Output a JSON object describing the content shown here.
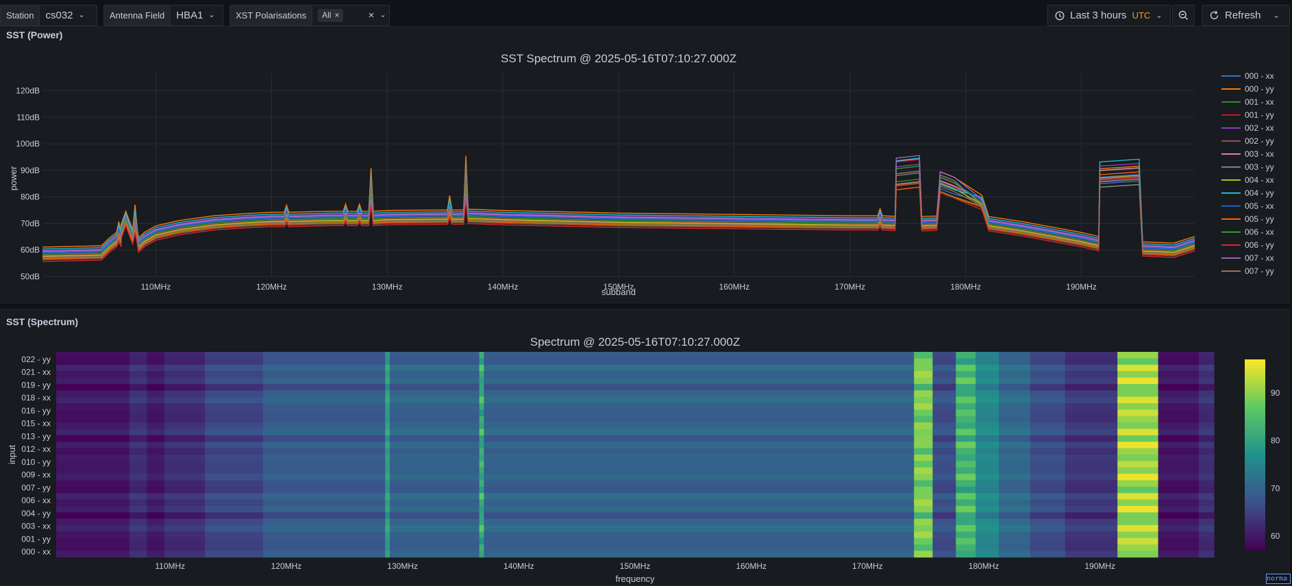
{
  "toolbar": {
    "station": {
      "label": "Station",
      "value": "cs032"
    },
    "antenna_field": {
      "label": "Antenna Field",
      "value": "HBA1"
    },
    "xst_polarisations": {
      "label": "XST Polarisations",
      "chip": "All"
    },
    "time_range": {
      "label": "Last 3 hours",
      "tz": "UTC"
    },
    "refresh_label": "Refresh",
    "icons": {
      "clock": "clock-icon",
      "zoom_out": "zoom-out-icon",
      "refresh": "refresh-icon"
    }
  },
  "panel1": {
    "title": "SST (Power)",
    "chart_data": {
      "type": "line",
      "title": "SST Spectrum @ 2025-05-16T07:10:27.000Z",
      "xlabel": "subband",
      "ylabel": "power",
      "xlim": [
        100.2,
        199.8
      ],
      "ylim": [
        50,
        124
      ],
      "x_ticks": [
        110,
        120,
        130,
        140,
        150,
        160,
        170,
        180,
        190
      ],
      "x_tick_labels": [
        "110MHz",
        "120MHz",
        "130MHz",
        "140MHz",
        "150MHz",
        "160MHz",
        "170MHz",
        "180MHz",
        "190MHz"
      ],
      "y_ticks": [
        50,
        60,
        70,
        80,
        90,
        100,
        110,
        120
      ],
      "y_tick_labels": [
        "50dB",
        "60dB",
        "70dB",
        "80dB",
        "90dB",
        "100dB",
        "110dB",
        "120dB"
      ],
      "grid": true,
      "legend_position": "right",
      "base_x": [
        100.2,
        105.3,
        106,
        106.6,
        107,
        107.4,
        108,
        108.5,
        109,
        110,
        112,
        115,
        118,
        120,
        125,
        130,
        135,
        137,
        140,
        150,
        160,
        170,
        173.9,
        174,
        176,
        176.2,
        177.5,
        177.8,
        179,
        181.4,
        182,
        185,
        190,
        191.5,
        191.6,
        195,
        195.3,
        197,
        198,
        199.8
      ],
      "base_y": [
        58.5,
        59,
        62,
        64,
        67,
        72,
        65,
        62,
        64,
        66.5,
        68.5,
        70.3,
        71.2,
        71.6,
        72,
        72.3,
        72.5,
        72.8,
        72.3,
        71.3,
        70.8,
        70.3,
        70.1,
        89,
        90,
        70,
        70.2,
        86,
        84,
        78,
        70,
        68,
        64,
        62.5,
        88,
        89,
        60.5,
        60.2,
        60,
        62.5
      ],
      "series": [
        {
          "name": "000 - xx",
          "offset": 0.3,
          "color": "#3274d9"
        },
        {
          "name": "000 - yy",
          "offset": 2.6,
          "color": "#ff780a"
        },
        {
          "name": "001 - xx",
          "offset": -1.5,
          "color": "#37872d"
        },
        {
          "name": "001 - yy",
          "offset": -0.4,
          "color": "#c4162a"
        },
        {
          "name": "002 - xx",
          "offset": 1.4,
          "color": "#8f3bb8"
        },
        {
          "name": "002 - yy",
          "offset": -2.2,
          "color": "#8c564b"
        },
        {
          "name": "003 - xx",
          "offset": 0.9,
          "color": "#e377c2"
        },
        {
          "name": "003 - yy",
          "offset": -1,
          "color": "#7f7f7f"
        },
        {
          "name": "004 - xx",
          "offset": -0.8,
          "color": "#bcbd22"
        },
        {
          "name": "004 - yy",
          "offset": 1.9,
          "color": "#17becf"
        },
        {
          "name": "005 - xx",
          "offset": 0.6,
          "color": "#1f60c4"
        },
        {
          "name": "005 - yy",
          "offset": -1.8,
          "color": "#fa6400"
        },
        {
          "name": "006 - xx",
          "offset": -0.2,
          "color": "#2ca02c"
        },
        {
          "name": "006 - yy",
          "offset": -2.8,
          "color": "#d62728"
        },
        {
          "name": "007 - xx",
          "offset": 1.1,
          "color": "#9467bd"
        },
        {
          "name": "007 - yy",
          "offset": -1.2,
          "color": "#a36f5c"
        }
      ]
    }
  },
  "panel2": {
    "title": "SST (Spectrum)",
    "chart_data": {
      "type": "heatmap",
      "title": "Spectrum @ 2025-05-16T07:10:27.000Z",
      "xlabel": "frequency",
      "ylabel": "input",
      "xlim": [
        100.2,
        199.8
      ],
      "x_ticks": [
        110,
        120,
        130,
        140,
        150,
        160,
        170,
        180,
        190
      ],
      "x_tick_labels": [
        "110MHz",
        "120MHz",
        "130MHz",
        "140MHz",
        "150MHz",
        "160MHz",
        "170MHz",
        "180MHz",
        "190MHz"
      ],
      "y_tick_labels": [
        "022 - yy",
        "021 - xx",
        "019 - yy",
        "018 - xx",
        "016 - yy",
        "015 - xx",
        "013 - yy",
        "012 - xx",
        "010 - yy",
        "009 - xx",
        "007 - yy",
        "006 - xx",
        "004 - yy",
        "003 - xx",
        "001 - yy",
        "000 - xx"
      ],
      "colorbar_ticks": [
        60,
        70,
        80,
        90
      ],
      "value_range": [
        57,
        97
      ],
      "bands": [
        {
          "x0": 100.2,
          "x1": 106.5,
          "value": 60
        },
        {
          "x0": 106.5,
          "x1": 108,
          "value": 63
        },
        {
          "x0": 108,
          "x1": 109.5,
          "value": 60.5
        },
        {
          "x0": 109.5,
          "x1": 113,
          "value": 63
        },
        {
          "x0": 113,
          "x1": 118,
          "value": 66
        },
        {
          "x0": 118,
          "x1": 128.5,
          "value": 69
        },
        {
          "x0": 128.5,
          "x1": 128.9,
          "value": 80
        },
        {
          "x0": 128.9,
          "x1": 136.6,
          "value": 70
        },
        {
          "x0": 136.6,
          "x1": 137,
          "value": 82
        },
        {
          "x0": 137,
          "x1": 174,
          "value": 70
        },
        {
          "x0": 174,
          "x1": 175.6,
          "value": 89
        },
        {
          "x0": 175.6,
          "x1": 177.6,
          "value": 67
        },
        {
          "x0": 177.6,
          "x1": 179.3,
          "value": 84
        },
        {
          "x0": 179.3,
          "x1": 181.3,
          "value": 76
        },
        {
          "x0": 181.3,
          "x1": 184,
          "value": 71
        },
        {
          "x0": 184,
          "x1": 187,
          "value": 67
        },
        {
          "x0": 187,
          "x1": 191.5,
          "value": 64
        },
        {
          "x0": 191.5,
          "x1": 195,
          "value": 92
        },
        {
          "x0": 195,
          "x1": 198.5,
          "value": 60
        },
        {
          "x0": 198.5,
          "x1": 199.8,
          "value": 63
        }
      ]
    }
  },
  "corner_label": "norma"
}
